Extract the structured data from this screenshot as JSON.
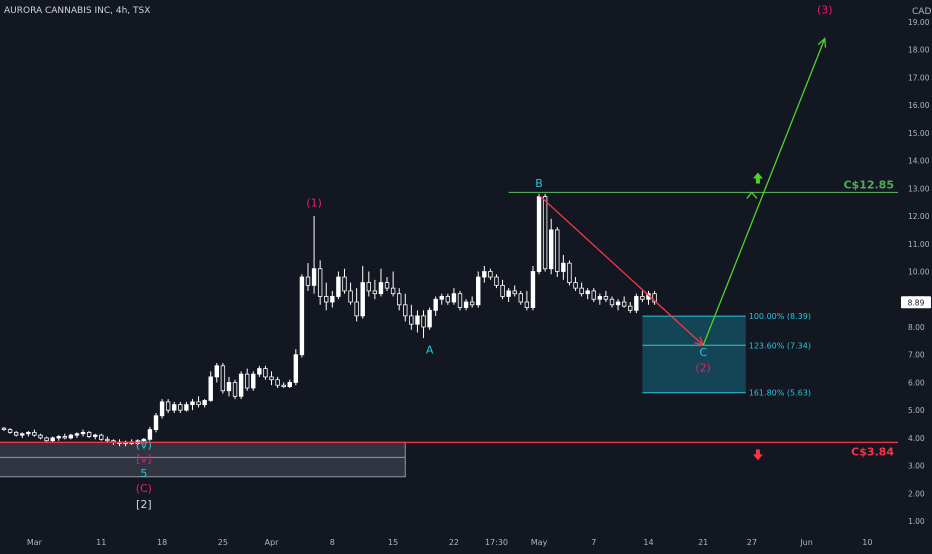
{
  "header": {
    "title": "AURORA CANNABIS INC, 4h, TSX",
    "currency": "CAD"
  },
  "colors": {
    "background": "#131722",
    "candle": "#ffffff",
    "wave_label_red": "#e91e63",
    "wave_label_cyan": "#26c6da",
    "resistance": "#4caf50",
    "support": "#f23645",
    "projection_up": "#4cd426",
    "projection_down": "#f23645",
    "fib_fill": "#15566a",
    "fib_line": "#26c6da",
    "axis_text": "#b2b5be"
  },
  "chart_data": {
    "type": "candlestick",
    "title": "AURORA CANNABIS INC, 4h, TSX",
    "ylim": [
      0.5,
      19.5
    ],
    "y_ticks": [
      "1.00",
      "2.00",
      "3.00",
      "4.00",
      "5.00",
      "6.00",
      "7.00",
      "8.00",
      "9.00",
      "10.00",
      "11.00",
      "12.00",
      "13.00",
      "14.00",
      "15.00",
      "16.00",
      "17.00",
      "18.00",
      "19.00"
    ],
    "x_ticks": [
      {
        "label": "Mar",
        "i": 5
      },
      {
        "label": "11",
        "i": 16
      },
      {
        "label": "18",
        "i": 26
      },
      {
        "label": "25",
        "i": 36
      },
      {
        "label": "Apr",
        "i": 44
      },
      {
        "label": "8",
        "i": 54
      },
      {
        "label": "15",
        "i": 64
      },
      {
        "label": "22",
        "i": 74
      },
      {
        "label": "17:30",
        "i": 81
      },
      {
        "label": "May",
        "i": 88
      },
      {
        "label": "7",
        "i": 97
      },
      {
        "label": "14",
        "i": 106
      },
      {
        "label": "21",
        "i": 115
      },
      {
        "label": "27",
        "i": 123
      },
      {
        "label": "Jun",
        "i": 132
      },
      {
        "label": "10",
        "i": 142
      }
    ],
    "candles": [
      [
        4.35,
        4.4,
        4.25,
        4.3
      ],
      [
        4.3,
        4.35,
        4.15,
        4.2
      ],
      [
        4.2,
        4.25,
        4.05,
        4.1
      ],
      [
        4.1,
        4.2,
        4.0,
        4.15
      ],
      [
        4.15,
        4.25,
        4.05,
        4.2
      ],
      [
        4.2,
        4.3,
        4.05,
        4.1
      ],
      [
        4.1,
        4.15,
        3.95,
        4.0
      ],
      [
        4.0,
        4.05,
        3.85,
        3.9
      ],
      [
        3.9,
        4.05,
        3.85,
        4.0
      ],
      [
        4.0,
        4.1,
        3.9,
        4.05
      ],
      [
        4.05,
        4.15,
        3.95,
        4.0
      ],
      [
        4.0,
        4.15,
        3.95,
        4.1
      ],
      [
        4.1,
        4.2,
        4.0,
        4.15
      ],
      [
        4.15,
        4.3,
        4.05,
        4.2
      ],
      [
        4.2,
        4.25,
        4.0,
        4.05
      ],
      [
        4.05,
        4.15,
        3.95,
        4.1
      ],
      [
        4.1,
        4.15,
        3.9,
        3.95
      ],
      [
        3.95,
        4.05,
        3.85,
        3.9
      ],
      [
        3.9,
        3.95,
        3.75,
        3.85
      ],
      [
        3.85,
        3.95,
        3.7,
        3.8
      ],
      [
        3.8,
        3.9,
        3.7,
        3.85
      ],
      [
        3.85,
        3.95,
        3.75,
        3.8
      ],
      [
        3.8,
        3.95,
        3.75,
        3.9
      ],
      [
        3.9,
        4.0,
        3.8,
        3.95
      ],
      [
        3.95,
        4.4,
        3.9,
        4.3
      ],
      [
        4.3,
        4.9,
        4.2,
        4.8
      ],
      [
        4.8,
        5.4,
        4.7,
        5.3
      ],
      [
        5.3,
        5.4,
        4.9,
        5.0
      ],
      [
        5.0,
        5.3,
        4.9,
        5.2
      ],
      [
        5.2,
        5.3,
        4.9,
        5.0
      ],
      [
        5.0,
        5.3,
        4.95,
        5.2
      ],
      [
        5.2,
        5.4,
        5.0,
        5.3
      ],
      [
        5.3,
        5.5,
        5.1,
        5.2
      ],
      [
        5.2,
        5.4,
        5.1,
        5.35
      ],
      [
        5.35,
        6.4,
        5.3,
        6.2
      ],
      [
        6.2,
        6.7,
        6.0,
        6.6
      ],
      [
        6.6,
        6.7,
        5.6,
        5.7
      ],
      [
        5.7,
        6.2,
        5.5,
        6.0
      ],
      [
        6.0,
        6.1,
        5.4,
        5.5
      ],
      [
        5.5,
        6.4,
        5.4,
        6.3
      ],
      [
        6.3,
        6.5,
        5.7,
        5.8
      ],
      [
        5.8,
        6.4,
        5.7,
        6.3
      ],
      [
        6.3,
        6.6,
        6.2,
        6.5
      ],
      [
        6.5,
        6.6,
        6.1,
        6.2
      ],
      [
        6.2,
        6.4,
        5.9,
        6.1
      ],
      [
        6.1,
        6.2,
        5.8,
        5.9
      ],
      [
        5.9,
        6.0,
        5.8,
        5.85
      ],
      [
        5.85,
        6.1,
        5.8,
        6.0
      ],
      [
        6.0,
        7.2,
        5.9,
        7.0
      ],
      [
        7.0,
        9.9,
        6.9,
        9.8
      ],
      [
        9.8,
        10.3,
        9.3,
        9.5
      ],
      [
        9.5,
        12.0,
        9.2,
        10.1
      ],
      [
        10.1,
        10.4,
        8.8,
        9.1
      ],
      [
        9.1,
        9.6,
        8.6,
        8.9
      ],
      [
        8.9,
        9.3,
        8.7,
        9.1
      ],
      [
        9.1,
        10.0,
        9.0,
        9.8
      ],
      [
        9.8,
        10.1,
        9.2,
        9.3
      ],
      [
        9.3,
        9.6,
        8.8,
        8.9
      ],
      [
        8.9,
        9.4,
        8.2,
        8.4
      ],
      [
        8.4,
        10.2,
        8.3,
        9.6
      ],
      [
        9.6,
        10.0,
        9.1,
        9.3
      ],
      [
        9.3,
        9.7,
        9.0,
        9.2
      ],
      [
        9.2,
        10.1,
        9.1,
        9.6
      ],
      [
        9.6,
        9.8,
        9.3,
        9.4
      ],
      [
        9.4,
        10.0,
        9.1,
        9.2
      ],
      [
        9.2,
        9.4,
        8.6,
        8.8
      ],
      [
        8.8,
        9.2,
        8.2,
        8.4
      ],
      [
        8.4,
        8.8,
        7.9,
        8.1
      ],
      [
        8.1,
        8.6,
        7.8,
        8.4
      ],
      [
        8.4,
        8.6,
        7.6,
        8.0
      ],
      [
        8.0,
        8.7,
        7.9,
        8.6
      ],
      [
        8.6,
        9.1,
        8.4,
        9.0
      ],
      [
        9.0,
        9.2,
        8.8,
        9.1
      ],
      [
        9.1,
        9.2,
        8.8,
        8.9
      ],
      [
        8.9,
        9.4,
        8.8,
        9.2
      ],
      [
        9.2,
        9.3,
        8.6,
        8.7
      ],
      [
        8.7,
        9.0,
        8.6,
        8.9
      ],
      [
        8.9,
        9.1,
        8.7,
        8.8
      ],
      [
        8.8,
        10.0,
        8.7,
        9.8
      ],
      [
        9.8,
        10.2,
        9.6,
        10.0
      ],
      [
        10.0,
        10.1,
        9.7,
        9.8
      ],
      [
        9.8,
        9.9,
        9.4,
        9.5
      ],
      [
        9.5,
        9.7,
        9.0,
        9.1
      ],
      [
        9.1,
        9.4,
        8.9,
        9.3
      ],
      [
        9.3,
        9.5,
        9.1,
        9.2
      ],
      [
        9.2,
        9.3,
        8.8,
        8.9
      ],
      [
        8.9,
        9.3,
        8.6,
        8.7
      ],
      [
        8.7,
        10.2,
        8.6,
        10.0
      ],
      [
        10.0,
        12.8,
        9.9,
        12.7
      ],
      [
        12.7,
        12.8,
        10.0,
        10.1
      ],
      [
        10.1,
        11.9,
        9.9,
        11.5
      ],
      [
        11.5,
        11.6,
        9.8,
        10.0
      ],
      [
        10.0,
        10.6,
        9.7,
        10.3
      ],
      [
        10.3,
        10.4,
        9.5,
        9.6
      ],
      [
        9.6,
        9.8,
        9.3,
        9.4
      ],
      [
        9.4,
        9.6,
        9.1,
        9.2
      ],
      [
        9.2,
        9.4,
        9.0,
        9.3
      ],
      [
        9.3,
        9.4,
        8.9,
        9.0
      ],
      [
        9.0,
        9.2,
        8.8,
        9.1
      ],
      [
        9.1,
        9.3,
        8.9,
        9.0
      ],
      [
        9.0,
        9.1,
        8.7,
        8.8
      ],
      [
        8.8,
        9.0,
        8.6,
        8.9
      ],
      [
        8.9,
        9.1,
        8.7,
        8.75
      ],
      [
        8.75,
        8.9,
        8.5,
        8.6
      ],
      [
        8.6,
        9.2,
        8.5,
        9.1
      ],
      [
        9.1,
        9.3,
        8.9,
        9.0
      ],
      [
        9.0,
        9.3,
        8.8,
        9.2
      ],
      [
        9.2,
        9.3,
        8.8,
        8.9
      ]
    ],
    "last_price": "8.89",
    "levels": [
      {
        "label": "C$12.85",
        "price": 12.85,
        "role": "resistance"
      },
      {
        "label": "C$3.84",
        "price": 3.84,
        "role": "support"
      }
    ],
    "fib_levels": [
      {
        "label": "100.00% (8.39)",
        "price": 8.39
      },
      {
        "label": "123.60% (7.34)",
        "price": 7.34
      },
      {
        "label": "161.80% (5.63)",
        "price": 5.63
      }
    ],
    "wave_labels": [
      {
        "text": "(1)",
        "i": 51,
        "price": 12.35,
        "color": "red"
      },
      {
        "text": "B",
        "i": 88,
        "price": 13.05,
        "color": "cyan"
      },
      {
        "text": "A",
        "i": 70,
        "price": 7.05,
        "color": "cyan"
      },
      {
        "text": "C",
        "i": 115,
        "price": 6.95,
        "color": "cyan"
      },
      {
        "text": "(2)",
        "i": 115,
        "price": 6.4,
        "color": "red"
      },
      {
        "text": "(3)",
        "i": 135,
        "price": 19.3,
        "color": "red"
      },
      {
        "text": "(V)",
        "i": 23,
        "price": 3.62,
        "color": "cyan"
      },
      {
        "text": "[v]",
        "i": 23,
        "price": 3.12,
        "color": "red"
      },
      {
        "text": "5",
        "i": 23,
        "price": 2.6,
        "color": "cyan"
      },
      {
        "text": "(C)",
        "i": 23,
        "price": 2.05,
        "color": "red"
      },
      {
        "text": "[2]",
        "i": 23,
        "price": 1.48,
        "color": "white"
      }
    ],
    "projection": [
      {
        "from": {
          "i": 88,
          "price": 12.75
        },
        "to": {
          "i": 115,
          "price": 7.34
        },
        "color": "down"
      },
      {
        "from": {
          "i": 115,
          "price": 7.34
        },
        "to": {
          "i": 135,
          "price": 18.4
        },
        "color": "up"
      }
    ],
    "fib_box": {
      "i0": 105,
      "i1": 122,
      "top": 8.39,
      "bottom": 5.63
    },
    "support_box": {
      "i0": -1,
      "i1": 66,
      "top": 3.84,
      "bottom": 2.6,
      "mid": 3.3
    }
  }
}
